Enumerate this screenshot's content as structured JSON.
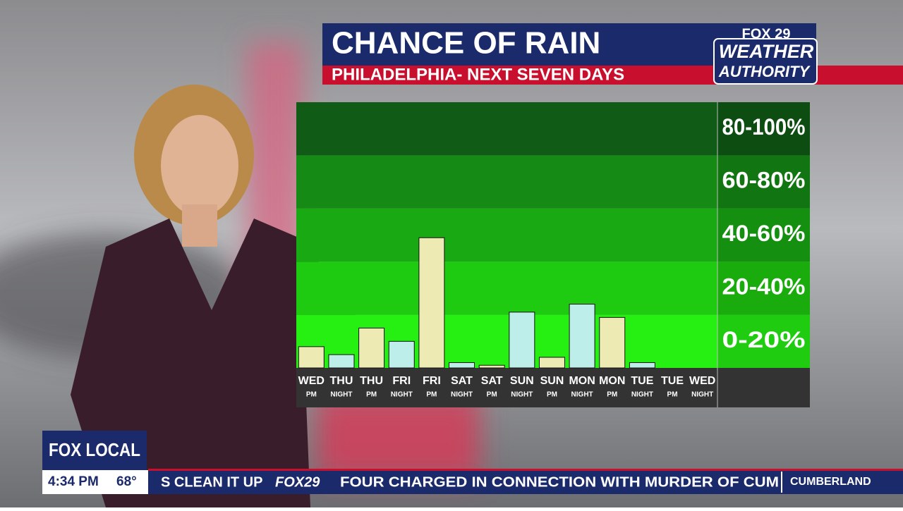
{
  "header": {
    "title": "CHANCE OF RAIN",
    "subtitle": "PHILADELPHIA- NEXT SEVEN DAYS",
    "logo_top": "FOX 29",
    "logo_mid": "WEATHER",
    "logo_bottom": "AUTHORITY"
  },
  "chart_data": {
    "type": "bar",
    "categories": [
      "WED",
      "THU",
      "THU",
      "FRI",
      "FRI",
      "SAT",
      "SAT",
      "SUN",
      "SUN",
      "MON",
      "MON",
      "TUE",
      "TUE",
      "WED"
    ],
    "periods": [
      "PM",
      "NIGHT",
      "PM",
      "NIGHT",
      "PM",
      "NIGHT",
      "PM",
      "NIGHT",
      "PM",
      "NIGHT",
      "PM",
      "NIGHT",
      "PM",
      "NIGHT"
    ],
    "values": [
      8,
      5,
      15,
      10,
      49,
      2,
      1,
      21,
      4,
      24,
      19,
      2,
      0,
      0
    ],
    "colors": [
      "#eeeab4",
      "#bdeeea",
      "#eeeab4",
      "#bdeeea",
      "#eeeab4",
      "#bdeeea",
      "#eeeab4",
      "#bdeeea",
      "#eeeab4",
      "#bdeeea",
      "#eeeab4",
      "#bdeeea",
      "#eeeab4",
      "#bdeeea"
    ],
    "ylim": [
      0,
      100
    ],
    "bands": [
      {
        "range": [
          0,
          20
        ],
        "label": "0-20%",
        "color": "#25f012"
      },
      {
        "range": [
          20,
          40
        ],
        "label": "20-40%",
        "color": "#1fcb10"
      },
      {
        "range": [
          40,
          60
        ],
        "label": "40-60%",
        "color": "#19a913"
      },
      {
        "range": [
          60,
          80
        ],
        "label": "60-80%",
        "color": "#158b15"
      },
      {
        "range": [
          80,
          100
        ],
        "label": "80-100%",
        "color": "#105b15"
      }
    ]
  },
  "lower_third": {
    "brand": "FOX LOCAL",
    "time": "4:34 PM",
    "temp": "68°",
    "ticker_prev": "S CLEAN IT UP",
    "ticker_brand": "FOX29",
    "ticker": "FOUR CHARGED IN CONNECTION WITH MURDER OF CUM",
    "ticker_next": "CUMBERLAND"
  }
}
